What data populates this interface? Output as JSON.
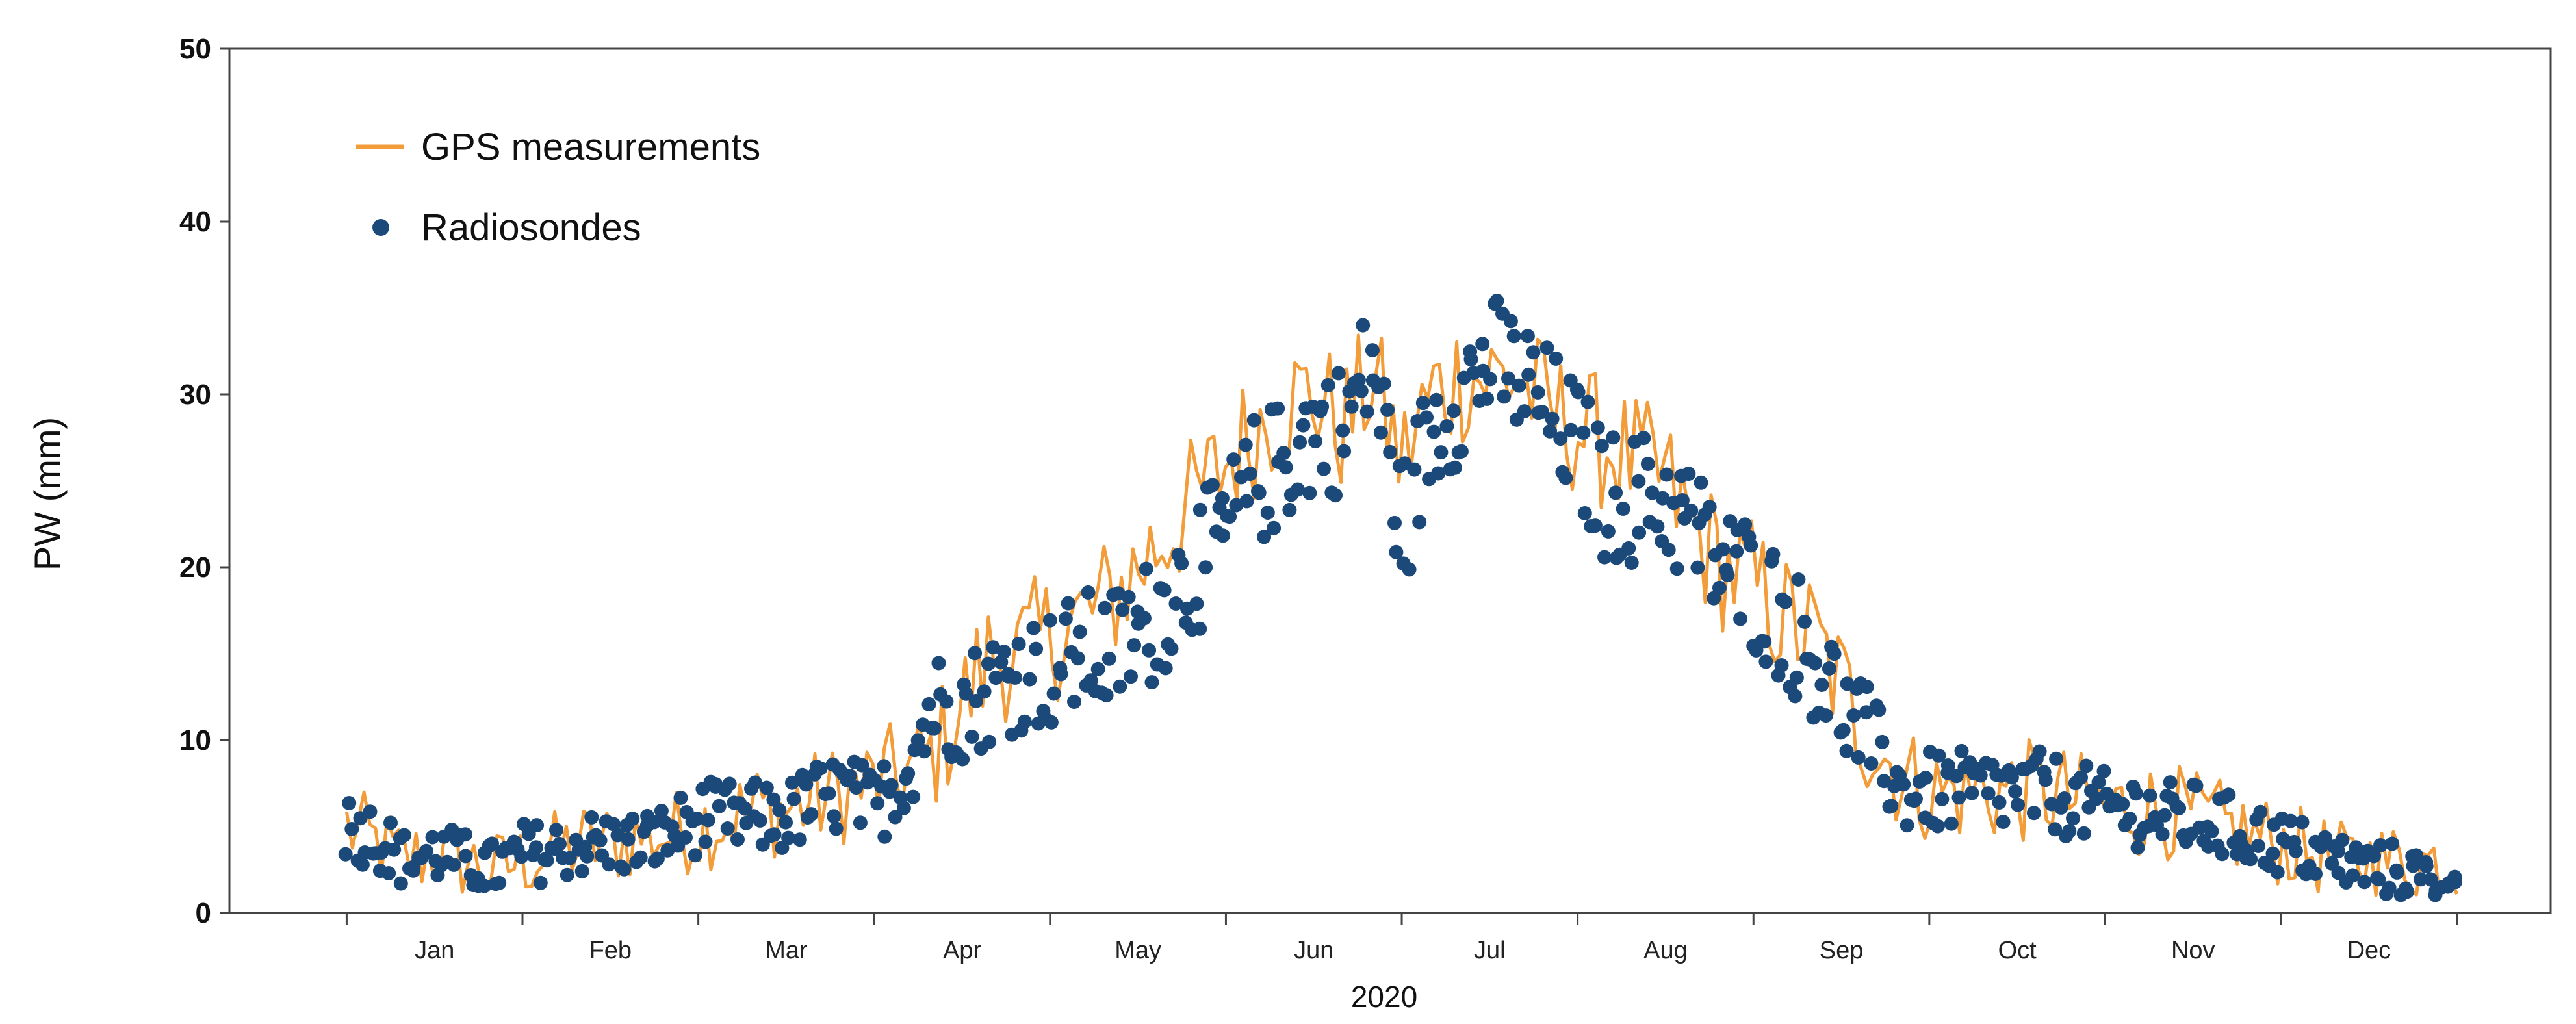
{
  "chart_data": {
    "type": "line+scatter",
    "xlabel": "2020",
    "ylabel": "PW (mm)",
    "ylim": [
      0,
      50
    ],
    "yticks": [
      "0",
      "10",
      "20",
      "30",
      "40",
      "50"
    ],
    "xlim_day": [
      -20,
      376
    ],
    "grid": false,
    "legend_position": "top-left",
    "months": [
      "Jan",
      "Feb",
      "Mar",
      "Apr",
      "May",
      "Jun",
      "Jul",
      "Aug",
      "Sep",
      "Oct",
      "Nov",
      "Dec"
    ],
    "month_boundaries_day": [
      0,
      30,
      60,
      90,
      120,
      150,
      180,
      210,
      240,
      270,
      300,
      330,
      360
    ],
    "colors": {
      "gps": "#F39C3A",
      "radiosonde": "#1B4A7A",
      "axis": "#444444"
    },
    "series": [
      {
        "name": "GPS measurements",
        "kind": "line",
        "anchors_day": [
          0,
          5,
          10,
          15,
          20,
          25,
          30,
          35,
          40,
          45,
          50,
          55,
          60,
          65,
          70,
          75,
          80,
          85,
          90,
          95,
          100,
          105,
          110,
          115,
          120,
          125,
          130,
          135,
          140,
          145,
          150,
          155,
          160,
          165,
          170,
          175,
          180,
          185,
          190,
          195,
          200,
          205,
          210,
          215,
          220,
          225,
          230,
          235,
          240,
          245,
          250,
          255,
          260,
          265,
          270,
          275,
          280,
          285,
          290,
          295,
          300,
          305,
          310,
          315,
          320,
          325,
          330,
          335,
          340,
          345,
          350,
          355,
          360
        ],
        "anchors_pw": [
          5,
          4,
          3,
          3.5,
          3,
          2.5,
          3,
          3.5,
          4,
          4,
          4.5,
          4.5,
          5,
          5.5,
          6,
          6,
          6.5,
          7,
          7.5,
          8,
          9,
          12,
          15,
          15,
          16,
          17,
          18,
          20,
          22,
          24,
          26,
          28,
          29.5,
          30,
          28,
          31,
          26,
          30,
          31,
          31,
          31,
          29,
          28,
          27,
          26,
          25,
          22,
          20,
          19,
          17,
          16,
          13,
          10,
          8,
          7,
          7,
          7,
          7,
          7,
          6.5,
          6,
          6,
          6,
          5.5,
          5,
          4.5,
          4,
          3.5,
          3,
          3,
          3,
          3,
          3
        ],
        "noise_amplitude_mm": 4,
        "points": 366
      },
      {
        "name": "Radiosondes",
        "kind": "scatter",
        "notes": "about 2 soundings per day, following the same seasonal curve",
        "anchors_day": [
          0,
          5,
          10,
          15,
          20,
          25,
          30,
          35,
          40,
          45,
          50,
          55,
          60,
          65,
          70,
          75,
          80,
          85,
          90,
          95,
          100,
          105,
          110,
          115,
          120,
          125,
          130,
          135,
          140,
          145,
          150,
          155,
          160,
          165,
          170,
          175,
          180,
          185,
          190,
          195,
          200,
          205,
          210,
          215,
          220,
          225,
          230,
          235,
          240,
          245,
          250,
          255,
          260,
          265,
          270,
          275,
          280,
          285,
          290,
          295,
          300,
          305,
          310,
          315,
          320,
          325,
          330,
          335,
          340,
          345,
          350,
          355,
          360
        ],
        "anchors_pw": [
          5,
          4.5,
          3,
          3.5,
          3,
          2.5,
          3.5,
          3.5,
          4,
          4,
          4,
          4.5,
          5.5,
          5.5,
          5.5,
          5.5,
          6.5,
          7,
          6,
          8,
          12,
          12,
          13,
          14,
          14,
          15,
          15,
          16,
          18,
          20,
          22,
          25,
          26,
          28,
          28,
          32,
          22,
          28,
          30,
          32,
          31,
          29,
          27,
          24,
          24,
          24,
          22,
          20,
          19,
          17,
          15,
          12,
          10,
          7,
          7,
          7,
          7,
          7,
          7,
          6.5,
          6,
          6,
          5.5,
          5.5,
          5,
          4.5,
          4,
          3.5,
          3,
          2.5,
          2.5,
          2,
          2
        ],
        "noise_amplitude_mm": 3,
        "points": 650
      }
    ]
  }
}
